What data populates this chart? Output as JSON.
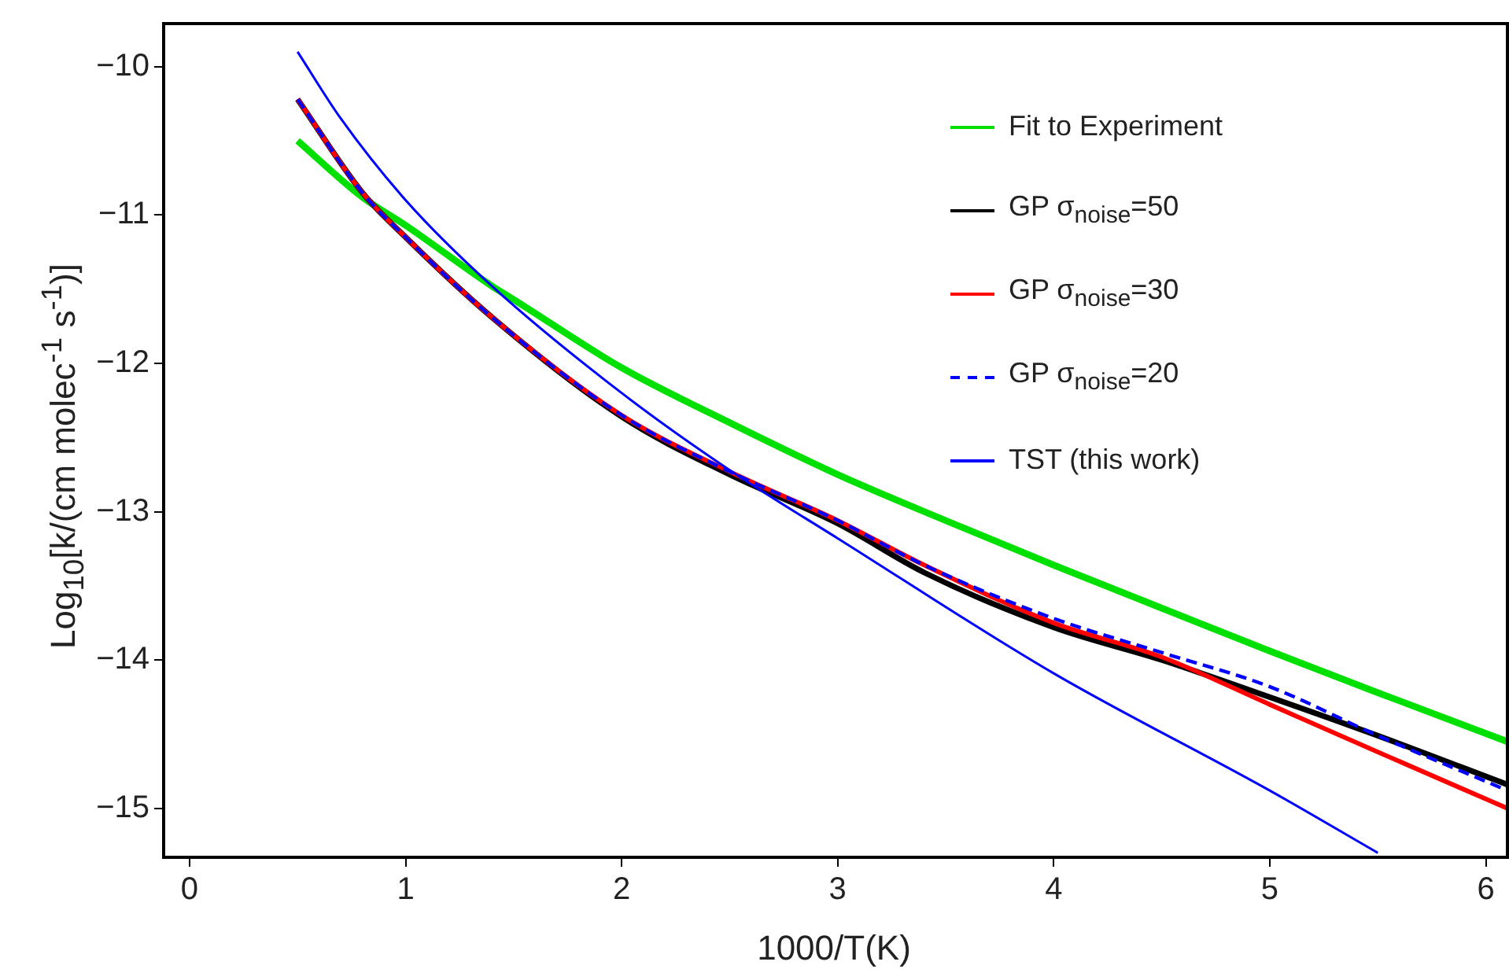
{
  "chart_data": {
    "type": "line",
    "xlabel": "1000/T(K)",
    "ylabel": "Log$_{10}$[k/(cm molec$^{-1}$ s$^{-1}$)]",
    "xlim": [
      -0.12,
      6.1
    ],
    "ylim": [
      -15.33,
      -9.71
    ],
    "xticks": [
      0,
      1,
      2,
      3,
      4,
      5,
      6
    ],
    "yticks": [
      -15,
      -14,
      -13,
      -12,
      -11,
      -10
    ],
    "grid": false,
    "legend": "top right",
    "marker": "none",
    "series": [
      {
        "name": "Fit to Experiment",
        "color": "#00e000",
        "x": [
          0.5,
          0.8,
          1,
          1.4,
          1.5,
          2,
          2.5,
          3,
          3.5,
          4,
          4.5,
          5,
          5.5,
          6.1
        ],
        "values": [
          -10.5,
          -10.88,
          -11.07,
          -11.48,
          -11.57,
          -12.03,
          -12.4,
          -12.75,
          -13.06,
          -13.36,
          -13.65,
          -13.94,
          -14.22,
          -14.55
        ]
      },
      {
        "name": "GP σ$_{noise}$=50",
        "color": "#000000",
        "x": [
          0.5,
          0.8,
          1,
          1.4,
          2,
          2.5,
          3,
          3.4,
          4,
          4.5,
          5,
          5.5,
          6.1
        ],
        "values": [
          -10.22,
          -10.85,
          -11.15,
          -11.69,
          -12.36,
          -12.75,
          -13.08,
          -13.41,
          -13.78,
          -14.0,
          -14.25,
          -14.51,
          -14.84
        ]
      },
      {
        "name": "GP σ$_{noise}$=30",
        "color": "#ff0000",
        "x": [
          0.5,
          0.8,
          1,
          1.4,
          2,
          2.5,
          3,
          3.4,
          4,
          4.5,
          5,
          5.5,
          6.1
        ],
        "values": [
          -10.22,
          -10.85,
          -11.15,
          -11.69,
          -12.35,
          -12.73,
          -13.06,
          -13.36,
          -13.75,
          -13.98,
          -14.3,
          -14.62,
          -15.0
        ]
      },
      {
        "name": "GP σ$_{noise}$=20",
        "color": "#0000ff",
        "line_style": "dashed",
        "x": [
          0.5,
          0.8,
          1,
          1.4,
          2,
          2.5,
          3,
          3.4,
          4,
          4.5,
          5,
          5.5,
          6.1
        ],
        "values": [
          -10.22,
          -10.85,
          -11.15,
          -11.69,
          -12.35,
          -12.73,
          -13.06,
          -13.36,
          -13.72,
          -13.95,
          -14.18,
          -14.51,
          -14.88
        ]
      },
      {
        "name": "TST (this work)",
        "color": "#0000ff",
        "x": [
          0.5,
          0.7,
          1,
          1.4,
          2,
          2.5,
          3,
          4,
          5,
          5.5
        ],
        "values": [
          -9.9,
          -10.35,
          -10.9,
          -11.48,
          -12.2,
          -12.72,
          -13.18,
          -14.09,
          -14.88,
          -15.3
        ]
      }
    ]
  }
}
